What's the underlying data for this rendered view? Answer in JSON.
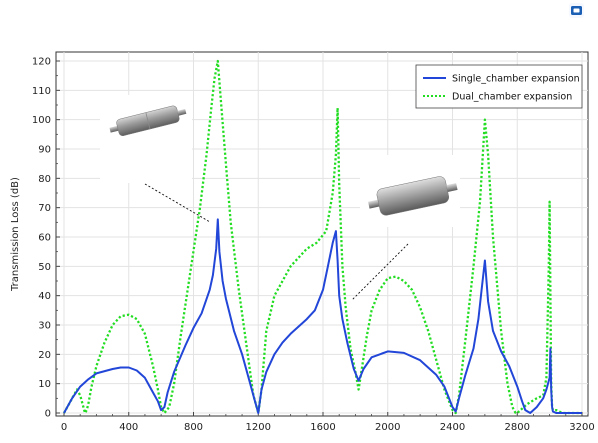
{
  "colors": {
    "series1": "#2246d8",
    "series2": "#22dd22",
    "toolbar_icon": "#1a5fb4"
  },
  "toolbar": {
    "icon": "camera-icon"
  },
  "chart_data": {
    "type": "line",
    "xlabel": "",
    "ylabel": "Transmission Loss (dB)",
    "xlim": [
      0,
      3200
    ],
    "ylim": [
      0,
      120
    ],
    "xticks": [
      "0",
      "400",
      "800",
      "1200",
      "1600",
      "2000",
      "2400",
      "2800",
      "3200"
    ],
    "yticks": [
      "0",
      "10",
      "20",
      "30",
      "40",
      "50",
      "60",
      "70",
      "80",
      "90",
      "100",
      "110",
      "120"
    ],
    "grid": true,
    "legend": "top-right",
    "insets": [
      "single-chamber-muffler-image",
      "dual-chamber-muffler-image"
    ],
    "series": [
      {
        "name": "Single_chamber expansion",
        "style": "solid",
        "x": [
          0,
          50,
          100,
          150,
          200,
          300,
          350,
          400,
          450,
          500,
          550,
          580,
          600,
          620,
          640,
          680,
          750,
          800,
          850,
          900,
          920,
          940,
          950,
          960,
          980,
          1000,
          1050,
          1100,
          1150,
          1180,
          1200,
          1220,
          1250,
          1300,
          1350,
          1400,
          1500,
          1550,
          1600,
          1630,
          1660,
          1680,
          1690,
          1700,
          1720,
          1750,
          1790,
          1820,
          1850,
          1900,
          2000,
          2100,
          2200,
          2300,
          2350,
          2400,
          2420,
          2440,
          2480,
          2530,
          2560,
          2580,
          2600,
          2610,
          2620,
          2650,
          2700,
          2750,
          2800,
          2830,
          2850,
          2880,
          2920,
          2960,
          2980,
          3000,
          3005,
          3010,
          3015,
          3020,
          3040,
          3100,
          3200
        ],
        "values": [
          0,
          5,
          9,
          11.5,
          13.5,
          15,
          15.5,
          15.5,
          14.5,
          12,
          7,
          4,
          1,
          2,
          7,
          14,
          23,
          29,
          34,
          42,
          47,
          56,
          66,
          55,
          45,
          39,
          28,
          20,
          10,
          4,
          0,
          8,
          14,
          20,
          24,
          27,
          32,
          35,
          42,
          50,
          58,
          62,
          52,
          40,
          32,
          24,
          15,
          11,
          15,
          19,
          21,
          20.5,
          18,
          13,
          9,
          2,
          0.5,
          5,
          13,
          22,
          32,
          42,
          52,
          45,
          38,
          28,
          21,
          16,
          9,
          4,
          1,
          0,
          2,
          5,
          8,
          12,
          22,
          8,
          2,
          0.5,
          0,
          0,
          0
        ]
      },
      {
        "name": "Dual_chamber expansion",
        "style": "dotted",
        "x": [
          0,
          40,
          80,
          100,
          120,
          130,
          140,
          150,
          170,
          200,
          250,
          300,
          350,
          400,
          450,
          500,
          550,
          580,
          600,
          620,
          650,
          680,
          720,
          780,
          840,
          880,
          910,
          930,
          950,
          970,
          1000,
          1030,
          1080,
          1130,
          1170,
          1200,
          1220,
          1250,
          1300,
          1400,
          1500,
          1560,
          1620,
          1660,
          1680,
          1690,
          1700,
          1720,
          1740,
          1770,
          1800,
          1820,
          1840,
          1870,
          1900,
          1950,
          2000,
          2050,
          2100,
          2150,
          2200,
          2250,
          2300,
          2350,
          2400,
          2420,
          2440,
          2480,
          2530,
          2570,
          2600,
          2620,
          2650,
          2700,
          2740,
          2770,
          2790,
          2800,
          2820,
          2860,
          2920,
          2960,
          2980,
          2995,
          3000,
          3005,
          3010,
          3015,
          3020,
          3040,
          3080,
          3200
        ],
        "values": [
          0,
          4,
          8,
          6,
          2,
          0,
          1,
          3,
          9,
          16,
          24,
          30,
          33,
          33.5,
          32,
          27,
          16,
          8,
          2,
          0,
          2,
          10,
          26,
          48,
          70,
          88,
          104,
          114,
          120,
          106,
          85,
          65,
          42,
          22,
          6,
          0,
          8,
          28,
          40,
          50,
          56,
          58,
          62,
          75,
          88,
          104,
          78,
          50,
          36,
          22,
          14,
          8,
          15,
          26,
          35,
          42,
          46,
          46.5,
          45,
          42,
          36,
          28,
          18,
          8,
          1,
          0,
          6,
          25,
          50,
          72,
          100,
          88,
          60,
          28,
          10,
          2,
          0,
          0,
          1,
          3,
          5,
          6,
          12,
          50,
          72,
          40,
          10,
          2,
          1,
          1,
          0,
          0
        ]
      }
    ]
  }
}
